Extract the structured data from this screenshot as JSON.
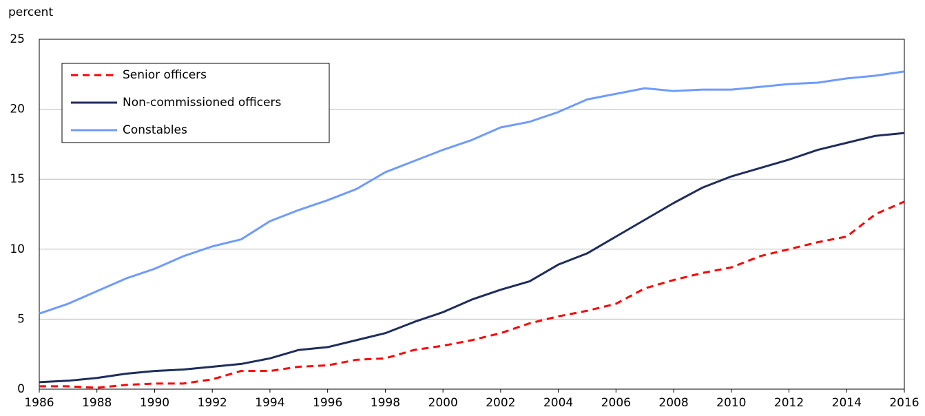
{
  "chart_data": {
    "type": "line",
    "y_label": "percent",
    "x": [
      1986,
      1987,
      1988,
      1989,
      1990,
      1991,
      1992,
      1993,
      1994,
      1995,
      1996,
      1997,
      1998,
      1999,
      2000,
      2001,
      2002,
      2003,
      2004,
      2005,
      2006,
      2007,
      2008,
      2009,
      2010,
      2011,
      2012,
      2013,
      2014,
      2015,
      2016
    ],
    "xlim": [
      1986,
      2016
    ],
    "xticks": [
      1986,
      1988,
      1990,
      1992,
      1994,
      1996,
      1998,
      2000,
      2002,
      2004,
      2006,
      2008,
      2010,
      2012,
      2014,
      2016
    ],
    "ylim": [
      0,
      25
    ],
    "yticks": [
      0,
      5,
      10,
      15,
      20,
      25
    ],
    "grid": true,
    "legend": "upper left",
    "series": [
      {
        "name": "Senior officers",
        "color": "#ff0000",
        "dashed": true,
        "values": [
          0.2,
          0.2,
          0.1,
          0.3,
          0.4,
          0.4,
          0.7,
          1.3,
          1.3,
          1.6,
          1.7,
          2.1,
          2.2,
          2.8,
          3.1,
          3.5,
          4.0,
          4.7,
          5.2,
          5.6,
          6.1,
          7.2,
          7.8,
          8.3,
          8.7,
          9.5,
          10.0,
          10.5,
          10.9,
          12.5,
          13.4
        ]
      },
      {
        "name": "Non-commissioned officers",
        "color": "#1f2d5c",
        "dashed": false,
        "values": [
          0.5,
          0.6,
          0.8,
          1.1,
          1.3,
          1.4,
          1.6,
          1.8,
          2.2,
          2.8,
          3.0,
          3.5,
          4.0,
          4.8,
          5.5,
          6.4,
          7.1,
          7.7,
          8.9,
          9.7,
          10.9,
          12.1,
          13.3,
          14.4,
          15.2,
          15.8,
          16.4,
          17.1,
          17.6,
          18.1,
          18.3
        ]
      },
      {
        "name": "Constables",
        "color": "#6f9bff",
        "dashed": false,
        "values": [
          5.4,
          6.1,
          7.0,
          7.9,
          8.6,
          9.5,
          10.2,
          10.7,
          12.0,
          12.8,
          13.5,
          14.3,
          15.5,
          16.3,
          17.1,
          17.8,
          18.7,
          19.1,
          19.8,
          20.7,
          21.1,
          21.5,
          21.3,
          21.4,
          21.4,
          21.6,
          21.8,
          21.9,
          22.2,
          22.4,
          22.7
        ]
      }
    ]
  }
}
